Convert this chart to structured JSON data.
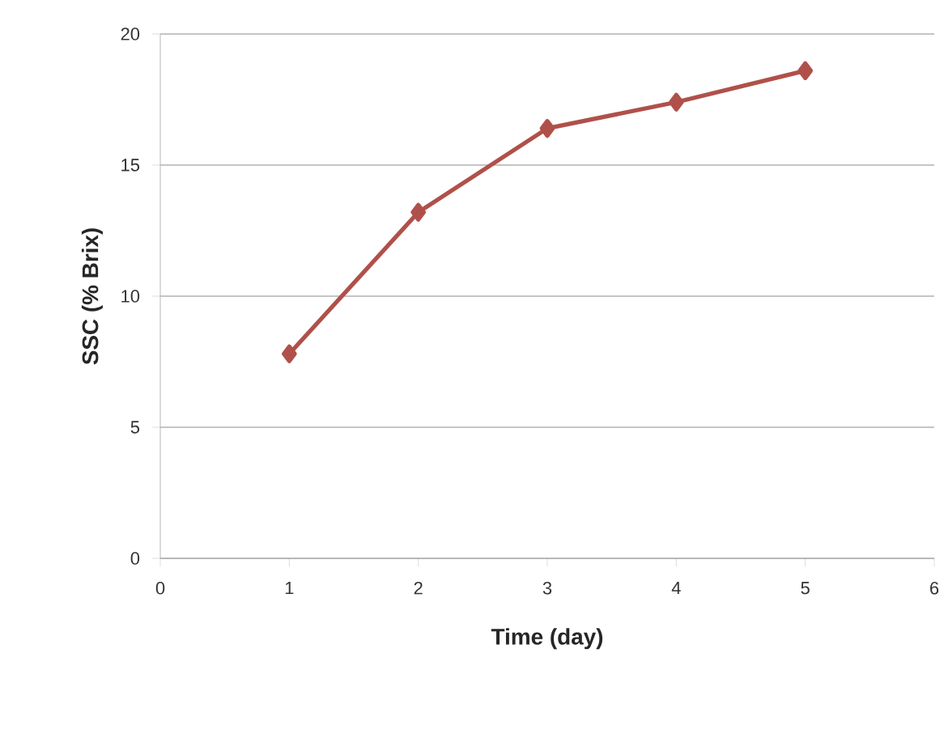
{
  "chart_data": {
    "type": "line",
    "xlabel": "Time (day)",
    "ylabel": "SSC  (% Brix)",
    "x": [
      1,
      2,
      3,
      4,
      5
    ],
    "series": [
      {
        "color": "#b0504a",
        "values": [
          7.8,
          13.2,
          16.4,
          17.4,
          18.6
        ]
      }
    ],
    "xlim": [
      0,
      6
    ],
    "xticks": [
      0,
      1,
      2,
      3,
      4,
      5,
      6
    ],
    "ylim": [
      0,
      20
    ],
    "yticks": [
      0,
      5,
      10,
      15,
      20
    ],
    "grid": "y",
    "marker": "diamond",
    "line_style": "solid"
  }
}
